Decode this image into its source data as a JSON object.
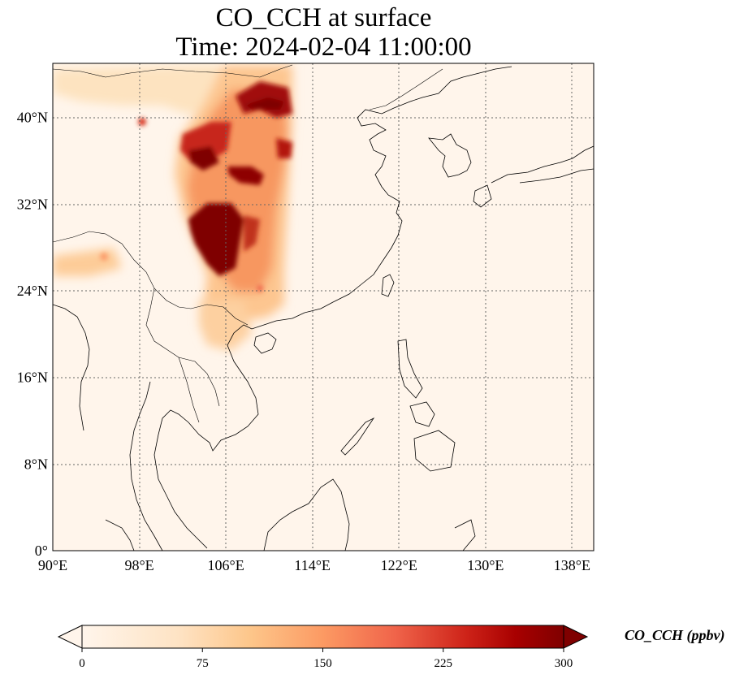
{
  "title": {
    "line1": "CO_CCH at surface",
    "line2": "Time: 2024-02-04 11:00:00"
  },
  "map": {
    "lon_range": [
      90,
      140
    ],
    "lat_range": [
      0,
      45
    ],
    "lon_ticks": [
      "90°E",
      "98°E",
      "106°E",
      "114°E",
      "122°E",
      "130°E",
      "138°E"
    ],
    "lat_ticks": [
      "0°",
      "8°N",
      "16°N",
      "24°N",
      "32°N",
      "40°N"
    ],
    "gridlines": true,
    "background_color": "#fff5eb",
    "coast_color": "#000000"
  },
  "colorbar": {
    "label": "CO_CCH (ppbv)",
    "ticks": [
      "0",
      "75",
      "150",
      "225",
      "300"
    ],
    "range": [
      0,
      300
    ],
    "cmap": "OrRd",
    "colors": [
      "#fff5eb",
      "#fdd49e",
      "#fdbb84",
      "#fc8d59",
      "#ef6548",
      "#d7301f",
      "#b30000",
      "#7f0000"
    ],
    "extend": "both"
  }
}
